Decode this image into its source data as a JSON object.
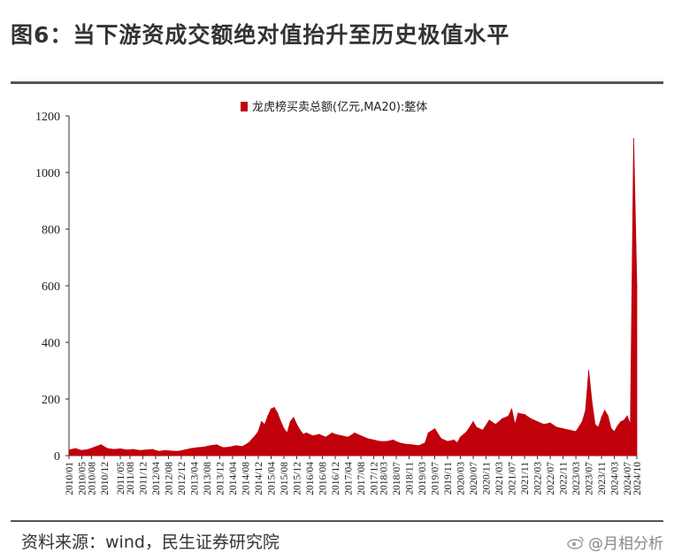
{
  "header": {
    "title": "图6：当下游资成交额绝对值抬升至历史极值水平"
  },
  "footer": {
    "source": "资料来源：wind，民生证券研究院",
    "watermark": "@月相分析"
  },
  "colors": {
    "series": "#c0000b",
    "rule": "#555555",
    "axis": "#333333"
  },
  "chart_data": {
    "type": "area",
    "title": "",
    "xlabel": "",
    "ylabel": "",
    "ylim": [
      0,
      1200
    ],
    "yticks": [
      0,
      200,
      400,
      600,
      800,
      1000,
      1200
    ],
    "xticks": [
      "2010/01",
      "2010/05",
      "2010/08",
      "2010/12",
      "2011/05",
      "2011/08",
      "2011/12",
      "2012/04",
      "2012/08",
      "2012/12",
      "2013/04",
      "2013/08",
      "2013/12",
      "2014/04",
      "2014/08",
      "2014/12",
      "2015/04",
      "2015/08",
      "2015/12",
      "2016/04",
      "2016/08",
      "2016/12",
      "2017/04",
      "2017/08",
      "2017/12",
      "2018/03",
      "2018/07",
      "2018/11",
      "2019/03",
      "2019/07",
      "2019/11",
      "2020/03",
      "2020/07",
      "2020/11",
      "2021/03",
      "2021/07",
      "2021/11",
      "2022/03",
      "2022/07",
      "2022/11",
      "2023/03",
      "2023/07",
      "2023/11",
      "2024/03",
      "2024/07",
      "2024/10"
    ],
    "grid": false,
    "legend": "top-center",
    "series": [
      {
        "name": "龙虎榜买卖总额(亿元,MA20):整体",
        "x": [
          "2010/01",
          "2010/03",
          "2010/05",
          "2010/07",
          "2010/09",
          "2010/11",
          "2011/01",
          "2011/03",
          "2011/05",
          "2011/07",
          "2011/09",
          "2011/11",
          "2012/01",
          "2012/03",
          "2012/05",
          "2012/07",
          "2012/09",
          "2012/11",
          "2013/01",
          "2013/03",
          "2013/05",
          "2013/07",
          "2013/09",
          "2013/11",
          "2014/01",
          "2014/03",
          "2014/05",
          "2014/07",
          "2014/09",
          "2014/11",
          "2014/12",
          "2015/01",
          "2015/02",
          "2015/03",
          "2015/04",
          "2015/05",
          "2015/06",
          "2015/07",
          "2015/08",
          "2015/09",
          "2015/10",
          "2015/11",
          "2015/12",
          "2016/01",
          "2016/02",
          "2016/03",
          "2016/05",
          "2016/07",
          "2016/09",
          "2016/11",
          "2016/12",
          "2017/02",
          "2017/04",
          "2017/06",
          "2017/08",
          "2017/10",
          "2017/12",
          "2018/02",
          "2018/04",
          "2018/06",
          "2018/08",
          "2018/10",
          "2018/12",
          "2019/02",
          "2019/03",
          "2019/04",
          "2019/05",
          "2019/07",
          "2019/09",
          "2019/11",
          "2020/01",
          "2020/02",
          "2020/03",
          "2020/05",
          "2020/07",
          "2020/08",
          "2020/10",
          "2020/12",
          "2021/02",
          "2021/04",
          "2021/06",
          "2021/07",
          "2021/08",
          "2021/09",
          "2021/11",
          "2022/01",
          "2022/03",
          "2022/05",
          "2022/07",
          "2022/09",
          "2022/11",
          "2023/01",
          "2023/03",
          "2023/05",
          "2023/06",
          "2023/07",
          "2023/08",
          "2023/09",
          "2023/10",
          "2023/11",
          "2023/12",
          "2024/01",
          "2024/02",
          "2024/03",
          "2024/04",
          "2024/05",
          "2024/06",
          "2024/07",
          "2024/08",
          "2024/09",
          "2024/10"
        ],
        "values": [
          20,
          25,
          18,
          22,
          30,
          38,
          25,
          22,
          24,
          20,
          22,
          18,
          20,
          22,
          15,
          18,
          16,
          15,
          20,
          25,
          28,
          30,
          35,
          38,
          28,
          30,
          35,
          32,
          45,
          70,
          85,
          120,
          110,
          140,
          165,
          170,
          150,
          120,
          95,
          80,
          120,
          135,
          110,
          90,
          75,
          80,
          70,
          75,
          65,
          80,
          75,
          70,
          65,
          80,
          70,
          60,
          55,
          50,
          50,
          55,
          45,
          40,
          38,
          35,
          40,
          45,
          80,
          95,
          60,
          50,
          55,
          45,
          65,
          85,
          120,
          100,
          90,
          125,
          110,
          130,
          140,
          165,
          110,
          150,
          145,
          130,
          120,
          110,
          115,
          100,
          95,
          90,
          85,
          120,
          160,
          300,
          190,
          110,
          100,
          135,
          160,
          140,
          95,
          85,
          105,
          120,
          125,
          140,
          110,
          1120,
          600
        ]
      }
    ]
  }
}
